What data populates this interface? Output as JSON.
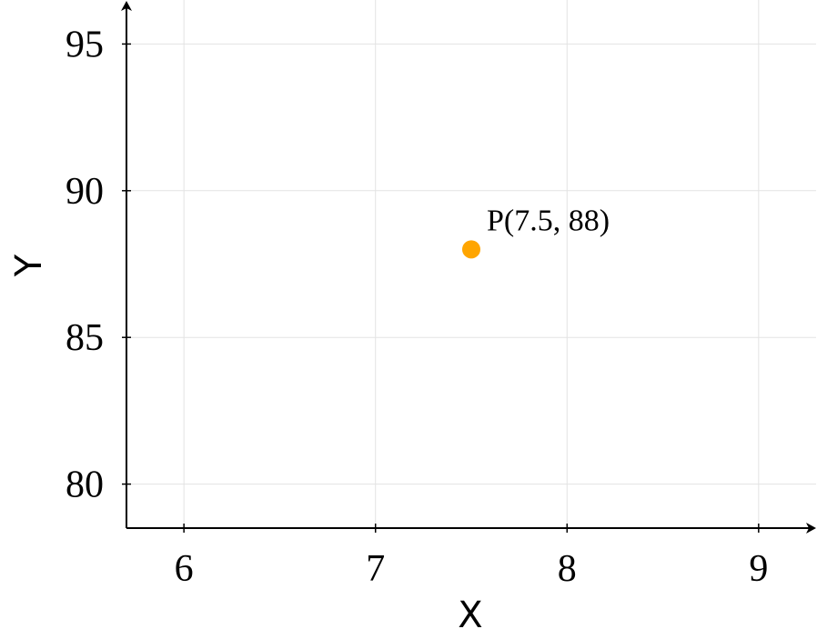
{
  "chart_data": {
    "type": "scatter",
    "title": "",
    "xlabel": "X",
    "ylabel": "Y",
    "xlim": [
      5.7,
      9.3
    ],
    "ylim": [
      78.5,
      96.5
    ],
    "xticks": [
      "6",
      "7",
      "8",
      "9"
    ],
    "yticks": [
      "80",
      "85",
      "90",
      "95"
    ],
    "grid": true,
    "series": [
      {
        "color": "#FFA500",
        "points": [
          {
            "x": 7.5,
            "y": 88,
            "label": "P(7.5, 88)"
          }
        ]
      }
    ]
  }
}
